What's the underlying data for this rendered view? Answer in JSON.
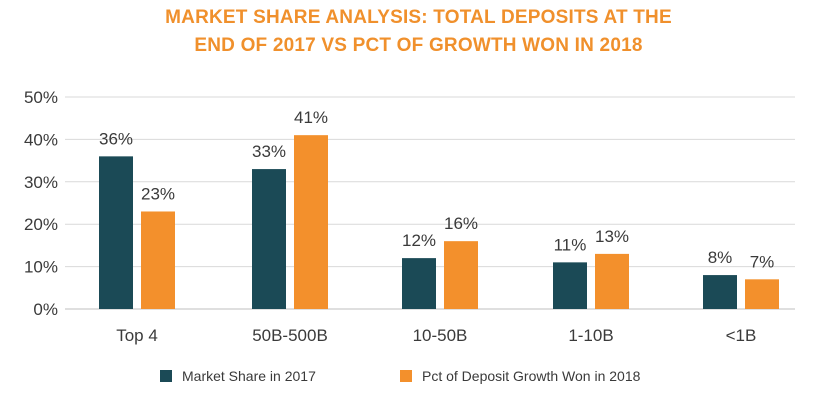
{
  "title_line1": "MARKET SHARE ANALYSIS: TOTAL DEPOSITS AT THE",
  "title_line2": "END OF 2017 VS PCT OF GROWTH WON IN 2018",
  "colors": {
    "title": "#f0902c",
    "market_share": "#1b4a56",
    "growth": "#f3902c",
    "grid": "#d9d9d9"
  },
  "chart_data": {
    "type": "bar",
    "title": "MARKET SHARE ANALYSIS: TOTAL DEPOSITS AT THE END OF 2017 VS PCT OF GROWTH WON IN 2018",
    "categories": [
      "Top 4",
      "50B-500B",
      "10-50B",
      "1-10B",
      "<1B"
    ],
    "series": [
      {
        "name": "Market Share in 2017",
        "values": [
          36,
          33,
          12,
          11,
          8
        ],
        "labels": [
          "36%",
          "33%",
          "12%",
          "11%",
          "8%"
        ]
      },
      {
        "name": "Pct of Deposit Growth Won in 2018",
        "values": [
          23,
          41,
          16,
          13,
          7
        ],
        "labels": [
          "23%",
          "41%",
          "16%",
          "13%",
          "7%"
        ]
      }
    ],
    "yticks": [
      "0%",
      "10%",
      "20%",
      "30%",
      "40%",
      "50%"
    ],
    "ylim": [
      0,
      50
    ],
    "grid": true,
    "legend": "bottom"
  }
}
